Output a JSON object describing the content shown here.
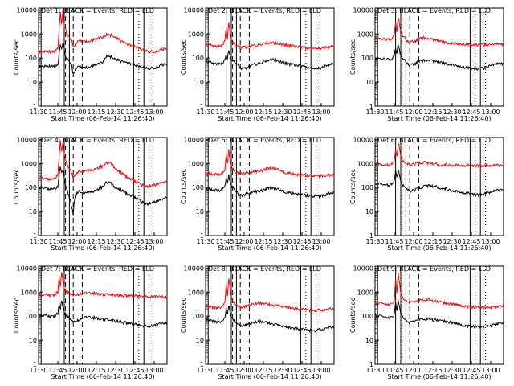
{
  "chart_data": {
    "type": "line",
    "xlabel": "Start Time (06-Feb-14 11:26:40)",
    "ylabel": "Counts/sec",
    "x_ticks": [
      "11:30",
      "11:45",
      "12:00",
      "12:15",
      "12:30",
      "12:45",
      "13:00"
    ],
    "x_tick_minutes": [
      0,
      15,
      30,
      45,
      60,
      75,
      90
    ],
    "xlim_minutes": [
      0,
      100
    ],
    "y_ticks": [
      "1",
      "10",
      "100",
      "1000",
      "10000"
    ],
    "ylim": [
      1,
      12000
    ],
    "y_scale": "log",
    "line_colors": {
      "events": "#000000",
      "lld": "#ff0000"
    },
    "panels": [
      {
        "title": "Det 1: BLACK = Events, RED = LLD",
        "x": [
          0,
          4,
          8,
          12,
          15,
          16,
          17,
          18,
          19,
          20,
          21,
          22,
          24,
          26,
          27,
          28,
          29,
          30,
          32,
          34,
          37,
          40,
          45,
          50,
          52,
          55,
          58,
          62,
          66,
          70,
          75,
          80,
          85,
          90,
          95,
          100
        ],
        "events": [
          45,
          47,
          46,
          45,
          50,
          150,
          400,
          220,
          500,
          230,
          110,
          90,
          70,
          45,
          20,
          25,
          35,
          42,
          45,
          40,
          40,
          45,
          50,
          70,
          110,
          120,
          100,
          80,
          70,
          60,
          50,
          45,
          35,
          40,
          50,
          55
        ],
        "lld": [
          180,
          190,
          185,
          180,
          240,
          1500,
          9000,
          2500,
          12000,
          2000,
          1800,
          900,
          700,
          500,
          280,
          300,
          380,
          460,
          550,
          500,
          480,
          520,
          600,
          750,
          900,
          950,
          800,
          600,
          450,
          350,
          300,
          250,
          180,
          190,
          220,
          240
        ]
      },
      {
        "title": "Det 2: BLACK = Events, RED = LLD",
        "x": [
          0,
          4,
          8,
          12,
          15,
          16,
          17,
          18,
          19,
          20,
          22,
          24,
          25,
          27,
          30,
          34,
          38,
          42,
          46,
          50,
          54,
          58,
          62,
          66,
          70,
          75,
          80,
          85,
          90,
          95,
          100
        ],
        "events": [
          70,
          65,
          60,
          55,
          80,
          150,
          90,
          200,
          120,
          90,
          75,
          60,
          50,
          40,
          35,
          45,
          55,
          60,
          70,
          90,
          85,
          70,
          60,
          55,
          50,
          45,
          40,
          35,
          40,
          50,
          60
        ],
        "lld": [
          350,
          340,
          320,
          300,
          500,
          2000,
          600,
          3000,
          1200,
          600,
          400,
          320,
          300,
          290,
          280,
          300,
          330,
          360,
          400,
          450,
          420,
          380,
          350,
          320,
          300,
          280,
          260,
          250,
          260,
          280,
          320
        ]
      },
      {
        "title": "Det 3: BLACK = Events, RED = LLD",
        "x": [
          0,
          4,
          8,
          12,
          15,
          16,
          17,
          18,
          19,
          20,
          22,
          24,
          25,
          27,
          30,
          34,
          38,
          42,
          46,
          50,
          54,
          58,
          62,
          66,
          70,
          75,
          80,
          85,
          90,
          95,
          100
        ],
        "events": [
          100,
          95,
          90,
          80,
          120,
          250,
          140,
          400,
          200,
          130,
          90,
          70,
          60,
          50,
          55,
          70,
          80,
          85,
          70,
          65,
          60,
          55,
          50,
          45,
          40,
          38,
          35,
          38,
          50,
          55,
          60
        ],
        "lld": [
          700,
          650,
          600,
          550,
          900,
          3000,
          1100,
          5000,
          2500,
          1300,
          800,
          600,
          500,
          450,
          480,
          600,
          700,
          650,
          550,
          500,
          450,
          420,
          400,
          380,
          370,
          360,
          350,
          355,
          360,
          370,
          380
        ]
      },
      {
        "title": "Det 4: BLACK = Events, RED = LLD",
        "x": [
          0,
          4,
          8,
          12,
          15,
          16,
          17,
          18,
          19,
          20,
          21,
          22,
          24,
          26,
          27,
          28,
          30,
          32,
          36,
          40,
          45,
          50,
          52,
          55,
          58,
          62,
          66,
          70,
          75,
          80,
          85,
          90,
          95,
          100
        ],
        "events": [
          100,
          95,
          90,
          85,
          110,
          300,
          800,
          400,
          600,
          250,
          130,
          80,
          40,
          15,
          8,
          30,
          60,
          70,
          60,
          65,
          75,
          110,
          150,
          170,
          120,
          90,
          70,
          50,
          40,
          25,
          20,
          25,
          30,
          40
        ],
        "lld": [
          250,
          240,
          230,
          220,
          350,
          1800,
          10000,
          3000,
          9000,
          2500,
          1500,
          900,
          600,
          400,
          250,
          300,
          400,
          480,
          500,
          520,
          600,
          800,
          1000,
          1100,
          800,
          500,
          350,
          250,
          180,
          130,
          110,
          130,
          150,
          180
        ]
      },
      {
        "title": "Det 5: BLACK = Events, RED = LLD",
        "x": [
          0,
          4,
          8,
          12,
          15,
          16,
          17,
          18,
          19,
          20,
          22,
          24,
          25,
          27,
          30,
          34,
          38,
          42,
          46,
          50,
          54,
          58,
          62,
          66,
          70,
          75,
          80,
          85,
          90,
          95,
          100
        ],
        "events": [
          90,
          85,
          80,
          75,
          110,
          250,
          150,
          350,
          180,
          120,
          90,
          70,
          55,
          45,
          50,
          60,
          65,
          70,
          80,
          100,
          90,
          75,
          65,
          60,
          55,
          50,
          45,
          42,
          45,
          55,
          65
        ],
        "lld": [
          380,
          370,
          360,
          350,
          500,
          2500,
          900,
          4000,
          1500,
          800,
          500,
          420,
          400,
          380,
          390,
          420,
          450,
          480,
          550,
          650,
          600,
          500,
          420,
          380,
          350,
          330,
          310,
          300,
          310,
          330,
          360
        ]
      },
      {
        "title": "Det 6: BLACK = Events, RED = LLD",
        "x": [
          0,
          4,
          8,
          12,
          15,
          16,
          17,
          18,
          19,
          20,
          22,
          24,
          25,
          27,
          30,
          34,
          38,
          42,
          46,
          50,
          54,
          58,
          62,
          66,
          70,
          75,
          80,
          85,
          90,
          95,
          100
        ],
        "events": [
          150,
          140,
          130,
          120,
          180,
          500,
          250,
          600,
          300,
          180,
          120,
          95,
          80,
          70,
          75,
          90,
          110,
          120,
          110,
          100,
          90,
          80,
          70,
          65,
          60,
          55,
          50,
          55,
          65,
          75,
          85
        ],
        "lld": [
          900,
          880,
          860,
          850,
          1200,
          3500,
          1800,
          8000,
          4000,
          2000,
          1200,
          1000,
          900,
          880,
          900,
          1000,
          1100,
          1050,
          950,
          900,
          880,
          860,
          850,
          840,
          830,
          820,
          810,
          800,
          810,
          830,
          850
        ]
      },
      {
        "title": "Det 7: BLACK = Events, RED = LLD",
        "x": [
          0,
          4,
          8,
          12,
          15,
          16,
          17,
          18,
          19,
          20,
          22,
          24,
          25,
          27,
          30,
          34,
          38,
          42,
          46,
          50,
          54,
          58,
          62,
          66,
          70,
          75,
          80,
          85,
          90,
          95,
          100
        ],
        "events": [
          120,
          110,
          100,
          95,
          130,
          300,
          180,
          450,
          250,
          150,
          100,
          80,
          70,
          60,
          65,
          80,
          90,
          85,
          80,
          75,
          70,
          65,
          60,
          55,
          50,
          45,
          40,
          38,
          40,
          50,
          55
        ],
        "lld": [
          800,
          780,
          760,
          740,
          1000,
          4000,
          1500,
          7000,
          3000,
          1500,
          1000,
          850,
          800,
          780,
          790,
          850,
          900,
          880,
          850,
          800,
          780,
          760,
          740,
          720,
          700,
          690,
          680,
          660,
          650,
          640,
          630
        ]
      },
      {
        "title": "Det 8: BLACK = Events, RED = LLD",
        "x": [
          0,
          4,
          8,
          12,
          15,
          16,
          17,
          18,
          19,
          20,
          22,
          24,
          25,
          27,
          30,
          34,
          38,
          42,
          46,
          50,
          54,
          58,
          62,
          66,
          70,
          75,
          80,
          85,
          90,
          95,
          100
        ],
        "events": [
          70,
          65,
          60,
          55,
          80,
          200,
          120,
          300,
          150,
          90,
          65,
          50,
          45,
          40,
          42,
          50,
          55,
          60,
          55,
          50,
          45,
          40,
          35,
          32,
          30,
          28,
          26,
          25,
          28,
          32,
          38
        ],
        "lld": [
          250,
          240,
          230,
          220,
          350,
          2000,
          700,
          4000,
          1500,
          600,
          350,
          280,
          250,
          240,
          250,
          300,
          330,
          350,
          320,
          300,
          280,
          260,
          240,
          220,
          200,
          190,
          180,
          175,
          180,
          190,
          220
        ]
      },
      {
        "title": "Det 9: BLACK = Events, RED = LLD",
        "x": [
          0,
          4,
          8,
          12,
          15,
          16,
          17,
          18,
          19,
          20,
          22,
          24,
          25,
          27,
          30,
          34,
          38,
          42,
          46,
          50,
          54,
          58,
          62,
          66,
          70,
          75,
          80,
          85,
          90,
          95,
          100
        ],
        "events": [
          110,
          100,
          90,
          85,
          120,
          350,
          180,
          500,
          250,
          130,
          90,
          70,
          60,
          55,
          60,
          70,
          80,
          75,
          70,
          65,
          60,
          55,
          50,
          45,
          40,
          38,
          35,
          36,
          40,
          48,
          55
        ],
        "lld": [
          350,
          340,
          320,
          300,
          450,
          3000,
          1000,
          7000,
          2500,
          900,
          550,
          450,
          400,
          380,
          390,
          450,
          500,
          480,
          420,
          380,
          350,
          320,
          300,
          280,
          260,
          240,
          230,
          220,
          230,
          250,
          280
        ]
      }
    ]
  }
}
